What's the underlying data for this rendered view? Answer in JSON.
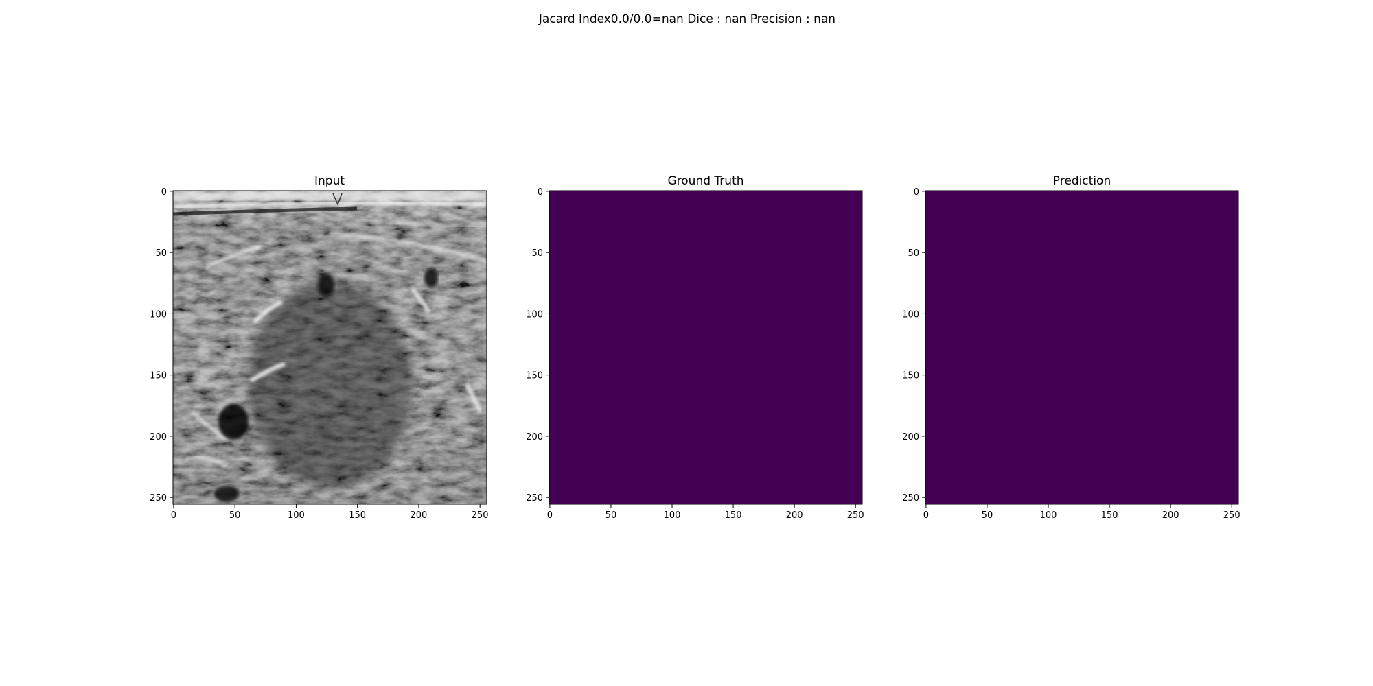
{
  "figure": {
    "suptitle": "Jacard Index0.0/0.0=nan Dice : nan Precision : nan"
  },
  "chart_data": [
    {
      "type": "heatmap",
      "title": "Input",
      "content": "grayscale ultrasound image",
      "colormap": "gray",
      "xlim": [
        0,
        255
      ],
      "ylim": [
        255,
        0
      ],
      "xticks": [
        0,
        50,
        100,
        150,
        200,
        250
      ],
      "yticks": [
        0,
        50,
        100,
        150,
        200,
        250
      ],
      "grid": false
    },
    {
      "type": "heatmap",
      "title": "Ground Truth",
      "content": "uniform mask, all zeros",
      "colormap": "viridis",
      "fill_color": "#440154",
      "xlim": [
        0,
        255
      ],
      "ylim": [
        255,
        0
      ],
      "xticks": [
        0,
        50,
        100,
        150,
        200,
        250
      ],
      "yticks": [
        0,
        50,
        100,
        150,
        200,
        250
      ],
      "grid": false
    },
    {
      "type": "heatmap",
      "title": "Prediction",
      "content": "uniform mask, all zeros",
      "colormap": "viridis",
      "fill_color": "#440154",
      "xlim": [
        0,
        255
      ],
      "ylim": [
        255,
        0
      ],
      "xticks": [
        0,
        50,
        100,
        150,
        200,
        250
      ],
      "yticks": [
        0,
        50,
        100,
        150,
        200,
        250
      ],
      "grid": false
    }
  ]
}
